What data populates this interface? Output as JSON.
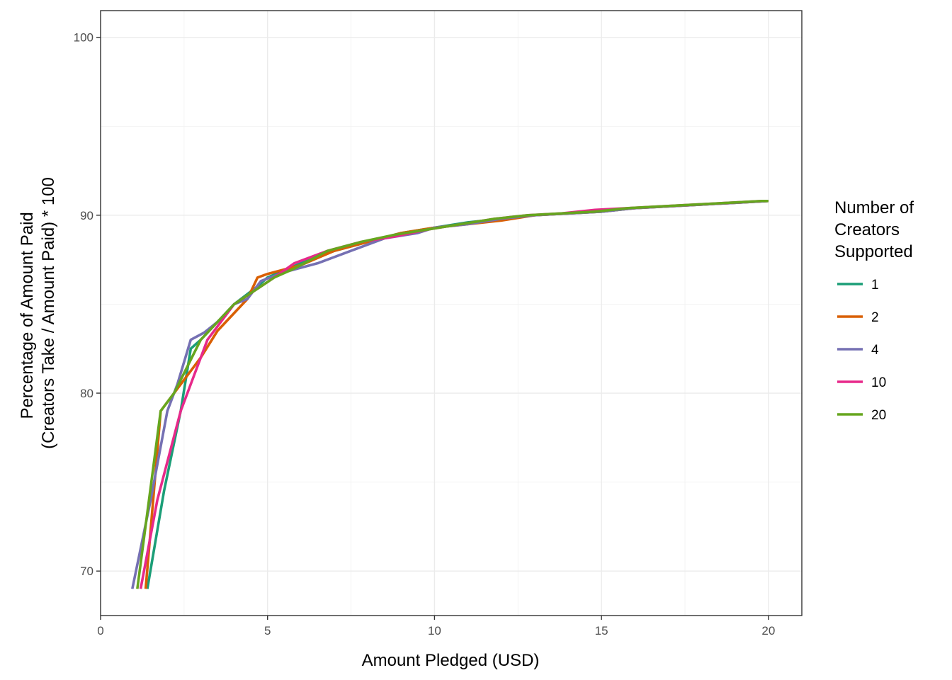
{
  "chart_data": {
    "type": "line",
    "title": "",
    "xlabel": "Amount Pledged (USD)",
    "ylabel_lines": [
      "Percentage of Amount Paid",
      "(Creators Take / Amount Paid) * 100"
    ],
    "xlim": [
      0,
      21
    ],
    "ylim": [
      67.5,
      101.5
    ],
    "x_ticks": [
      0,
      5,
      10,
      15,
      20
    ],
    "x_tick_labels": [
      "0",
      "5",
      "10",
      "15",
      "20"
    ],
    "y_ticks": [
      70,
      80,
      90,
      100
    ],
    "y_tick_labels": [
      "70",
      "80",
      "90",
      "100"
    ],
    "grid": true,
    "legend": {
      "title_lines": [
        "Number of",
        "Creators",
        "Supported"
      ],
      "placement": "right"
    },
    "series": [
      {
        "name": "1",
        "color": "#1B9E77",
        "points": [
          [
            1.4,
            69.0
          ],
          [
            1.9,
            74.5
          ],
          [
            2.4,
            79.0
          ],
          [
            2.7,
            82.5
          ],
          [
            3.0,
            83.0
          ],
          [
            3.5,
            84.0
          ],
          [
            4.0,
            85.0
          ],
          [
            4.7,
            86.0
          ],
          [
            5.0,
            86.5
          ],
          [
            6.0,
            87.3
          ],
          [
            7.0,
            88.0
          ],
          [
            8.0,
            88.5
          ],
          [
            9.0,
            89.0
          ],
          [
            10.0,
            89.3
          ],
          [
            11.0,
            89.6
          ],
          [
            12.0,
            89.8
          ],
          [
            13.0,
            90.0
          ],
          [
            14.0,
            90.1
          ],
          [
            15.0,
            90.2
          ],
          [
            16.0,
            90.4
          ],
          [
            17.0,
            90.5
          ],
          [
            18.0,
            90.6
          ],
          [
            19.0,
            90.7
          ],
          [
            20.0,
            90.8
          ]
        ]
      },
      {
        "name": "2",
        "color": "#D95F02",
        "points": [
          [
            1.35,
            69.0
          ],
          [
            1.8,
            79.0
          ],
          [
            2.2,
            80.0
          ],
          [
            2.6,
            81.0
          ],
          [
            3.0,
            82.0
          ],
          [
            3.5,
            83.5
          ],
          [
            4.0,
            84.5
          ],
          [
            4.4,
            85.3
          ],
          [
            4.7,
            86.5
          ],
          [
            5.0,
            86.7
          ],
          [
            6.0,
            87.2
          ],
          [
            7.0,
            88.0
          ],
          [
            8.0,
            88.5
          ],
          [
            9.0,
            89.0
          ],
          [
            10.0,
            89.3
          ],
          [
            11.0,
            89.5
          ],
          [
            12.0,
            89.7
          ],
          [
            13.0,
            90.0
          ],
          [
            14.0,
            90.1
          ],
          [
            15.0,
            90.2
          ],
          [
            16.0,
            90.4
          ],
          [
            17.0,
            90.5
          ],
          [
            18.0,
            90.6
          ],
          [
            19.0,
            90.7
          ],
          [
            20.0,
            90.8
          ]
        ]
      },
      {
        "name": "4",
        "color": "#7570B3",
        "points": [
          [
            0.95,
            69.0
          ],
          [
            1.5,
            74.0
          ],
          [
            2.0,
            79.0
          ],
          [
            2.3,
            80.5
          ],
          [
            2.7,
            83.0
          ],
          [
            3.1,
            83.4
          ],
          [
            3.5,
            84.0
          ],
          [
            4.0,
            85.0
          ],
          [
            4.4,
            85.3
          ],
          [
            4.8,
            86.3
          ],
          [
            5.5,
            86.8
          ],
          [
            6.5,
            87.3
          ],
          [
            7.5,
            88.0
          ],
          [
            8.5,
            88.7
          ],
          [
            9.5,
            89.0
          ],
          [
            10.0,
            89.3
          ],
          [
            11.0,
            89.5
          ],
          [
            12.0,
            89.8
          ],
          [
            13.0,
            90.0
          ],
          [
            14.0,
            90.1
          ],
          [
            15.0,
            90.2
          ],
          [
            16.0,
            90.4
          ],
          [
            17.0,
            90.5
          ],
          [
            18.0,
            90.6
          ],
          [
            19.0,
            90.7
          ],
          [
            20.0,
            90.8
          ]
        ]
      },
      {
        "name": "10",
        "color": "#E7298A",
        "points": [
          [
            1.2,
            69.0
          ],
          [
            1.7,
            74.0
          ],
          [
            2.4,
            79.0
          ],
          [
            2.8,
            81.0
          ],
          [
            3.2,
            83.0
          ],
          [
            3.6,
            84.0
          ],
          [
            4.0,
            85.0
          ],
          [
            4.4,
            85.5
          ],
          [
            4.8,
            86.0
          ],
          [
            5.2,
            86.5
          ],
          [
            5.8,
            87.3
          ],
          [
            6.8,
            88.0
          ],
          [
            7.8,
            88.5
          ],
          [
            8.8,
            88.8
          ],
          [
            9.8,
            89.2
          ],
          [
            10.8,
            89.5
          ],
          [
            11.8,
            89.8
          ],
          [
            12.8,
            90.0
          ],
          [
            13.8,
            90.1
          ],
          [
            14.8,
            90.3
          ],
          [
            15.8,
            90.4
          ],
          [
            16.8,
            90.5
          ],
          [
            17.8,
            90.6
          ],
          [
            18.8,
            90.7
          ],
          [
            19.8,
            90.8
          ],
          [
            20.0,
            90.8
          ]
        ]
      },
      {
        "name": "20",
        "color": "#66A61E",
        "points": [
          [
            1.1,
            69.0
          ],
          [
            1.8,
            79.0
          ],
          [
            2.2,
            80.0
          ],
          [
            2.6,
            81.5
          ],
          [
            3.0,
            83.0
          ],
          [
            3.5,
            84.0
          ],
          [
            4.0,
            85.0
          ],
          [
            4.4,
            85.5
          ],
          [
            4.8,
            86.0
          ],
          [
            5.2,
            86.5
          ],
          [
            5.8,
            87.0
          ],
          [
            6.8,
            88.0
          ],
          [
            7.8,
            88.5
          ],
          [
            8.8,
            88.9
          ],
          [
            9.8,
            89.2
          ],
          [
            10.8,
            89.5
          ],
          [
            11.8,
            89.8
          ],
          [
            12.8,
            90.0
          ],
          [
            13.8,
            90.1
          ],
          [
            14.8,
            90.2
          ],
          [
            15.8,
            90.4
          ],
          [
            16.8,
            90.5
          ],
          [
            17.8,
            90.6
          ],
          [
            18.8,
            90.7
          ],
          [
            19.8,
            90.8
          ],
          [
            20.0,
            90.8
          ]
        ]
      }
    ]
  }
}
